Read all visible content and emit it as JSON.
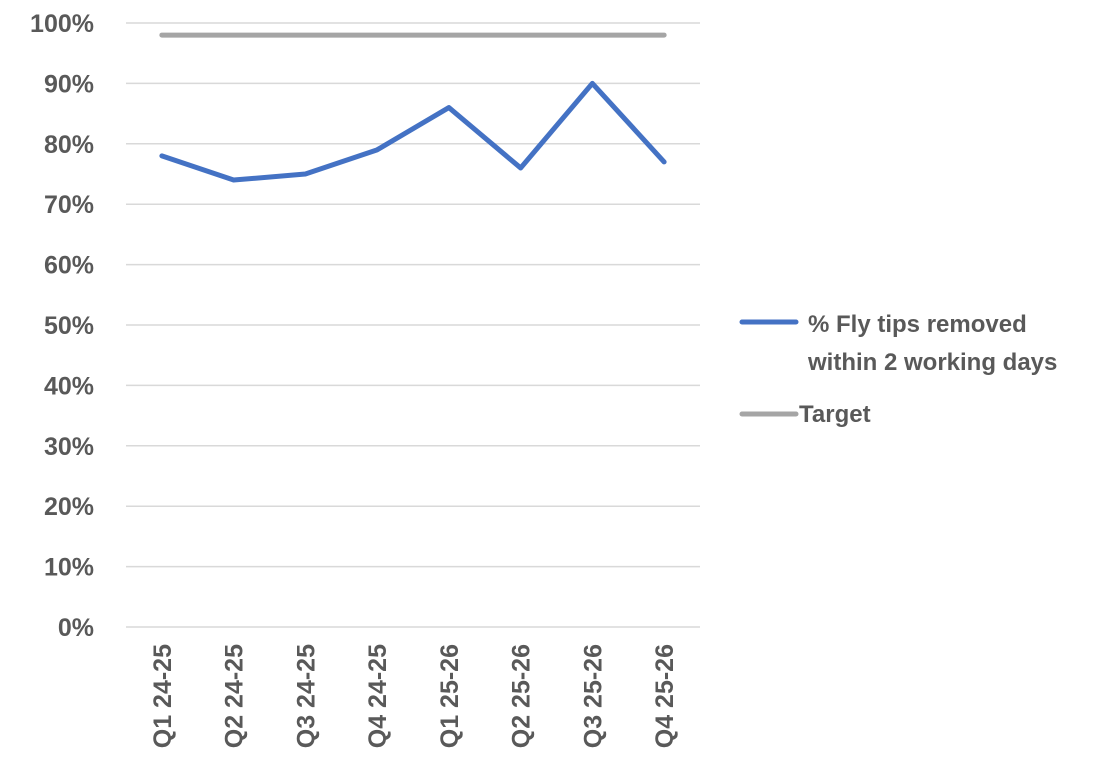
{
  "chart_data": {
    "type": "line",
    "title": "",
    "xlabel": "",
    "ylabel": "",
    "categories": [
      "Q1 24-25",
      "Q2 24-25",
      "Q3 24-25",
      "Q4 24-25",
      "Q1 25-26",
      "Q2 25-26",
      "Q3 25-26",
      "Q4 25-26"
    ],
    "y_ticks": [
      "0%",
      "10%",
      "20%",
      "30%",
      "40%",
      "50%",
      "60%",
      "70%",
      "80%",
      "90%",
      "100%"
    ],
    "ylim": [
      0,
      100
    ],
    "grid": true,
    "legend_position": "right",
    "series": [
      {
        "name_lines": [
          "% Fly tips removed",
          "within 2 working days"
        ],
        "values": [
          78,
          74,
          75,
          79,
          86,
          76,
          90,
          77
        ],
        "color": "#4472c4"
      },
      {
        "name_lines": [
          "Target"
        ],
        "values": [
          98,
          98,
          98,
          98,
          98,
          98,
          98,
          98
        ],
        "color": "#a5a5a5"
      }
    ]
  }
}
